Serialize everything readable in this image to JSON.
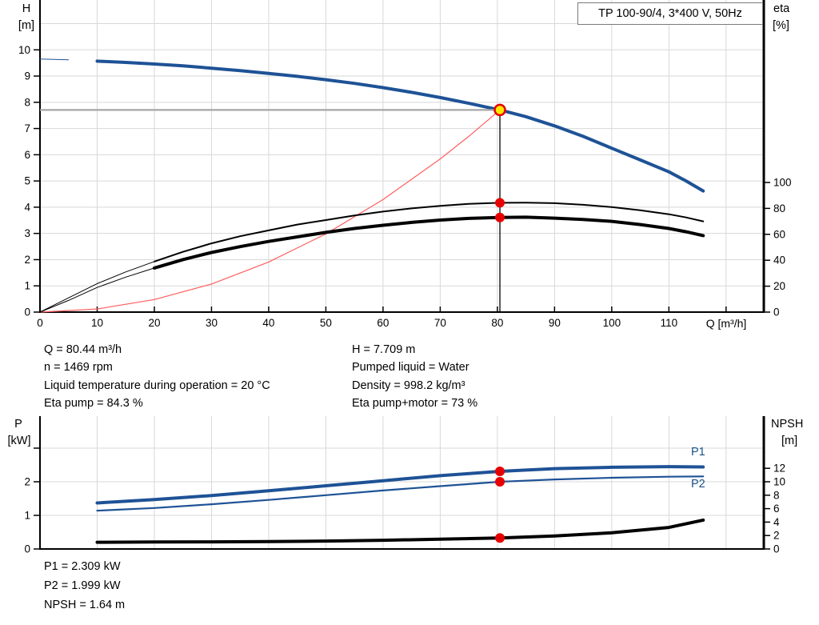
{
  "colors": {
    "curve_blue": "#1E5296",
    "label_blue": "#1D5289",
    "red": "#E60000",
    "op_yellow": "#FFE800",
    "system_red": "#FF5F5F",
    "grid": "#D8D8D8",
    "crosshair_gray": "#A6A6A6",
    "axis_black": "#000000",
    "title_border_gray": "#7A7A7A"
  },
  "info": {
    "top_left": [
      "Q = 80.44 m³/h",
      "n = 1469 rpm",
      "Liquid temperature during operation = 20 °C",
      "Eta pump = 84.3 %"
    ],
    "top_right": [
      "H = 7.709 m",
      "Pumped liquid = Water",
      "Density = 998.2 kg/m³",
      "Eta pump+motor = 73 %"
    ],
    "bottom": [
      "P1 = 2.309 kW",
      "P2 = 1.999 kW",
      "NPSH = 1.64 m"
    ]
  },
  "chart_data": [
    {
      "id": "head",
      "type": "line",
      "title": "TP 100-90/4, 3*400 V, 50Hz",
      "x": {
        "label": "Q [m³/h]",
        "min": 0,
        "max": 126.6,
        "tick_labels": [
          0,
          10,
          20,
          30,
          40,
          50,
          60,
          70,
          80,
          90,
          100,
          110
        ],
        "tick_marks": [
          0,
          10,
          20,
          30,
          40,
          50,
          60,
          70,
          80,
          90,
          100,
          110,
          120
        ],
        "grid": [
          10,
          20,
          30,
          40,
          50,
          60,
          70,
          80,
          90,
          100,
          110,
          120
        ]
      },
      "y_left": {
        "label": "H [m]",
        "label_lines": [
          "H",
          "[m]"
        ],
        "min": 0,
        "max": 11.9,
        "tick_labels": [
          0,
          1,
          2,
          3,
          4,
          5,
          6,
          7,
          8,
          9,
          10
        ],
        "grid": [
          1,
          2,
          3,
          4,
          5,
          6,
          7,
          8,
          9,
          10,
          11
        ]
      },
      "y_right": {
        "label": "eta [%]",
        "label_lines": [
          "eta",
          "[%]"
        ],
        "min": 0,
        "max": 100,
        "tick_labels": [
          0,
          20,
          40,
          60,
          80,
          100
        ]
      },
      "series": [
        {
          "name": "System curve",
          "axis": "left",
          "style": "thin-red",
          "points": [
            [
              0,
              0
            ],
            [
              10,
              0.12
            ],
            [
              20,
              0.48
            ],
            [
              30,
              1.07
            ],
            [
              40,
              1.91
            ],
            [
              50,
              2.98
            ],
            [
              60,
              4.29
            ],
            [
              70,
              5.84
            ],
            [
              75,
              6.7
            ],
            [
              80.44,
              7.709
            ]
          ]
        },
        {
          "name": "H",
          "axis": "left",
          "style": "thick-blue",
          "thin_below_q": 7,
          "points": [
            [
              0,
              9.65
            ],
            [
              5,
              9.62
            ],
            [
              10,
              9.57
            ],
            [
              15,
              9.52
            ],
            [
              20,
              9.46
            ],
            [
              25,
              9.39
            ],
            [
              30,
              9.3
            ],
            [
              35,
              9.21
            ],
            [
              40,
              9.1
            ],
            [
              45,
              8.99
            ],
            [
              50,
              8.86
            ],
            [
              55,
              8.72
            ],
            [
              60,
              8.56
            ],
            [
              65,
              8.38
            ],
            [
              70,
              8.18
            ],
            [
              75,
              7.96
            ],
            [
              80.44,
              7.709
            ],
            [
              85,
              7.45
            ],
            [
              90,
              7.1
            ],
            [
              95,
              6.7
            ],
            [
              100,
              6.25
            ],
            [
              105,
              5.8
            ],
            [
              110,
              5.35
            ],
            [
              113,
              5.0
            ],
            [
              116,
              4.62
            ]
          ]
        },
        {
          "name": "Eta pump",
          "axis": "right",
          "style": "thin-black",
          "thin_below_q": 20,
          "points": [
            [
              0,
              0
            ],
            [
              5,
              11
            ],
            [
              10,
              22
            ],
            [
              15,
              31
            ],
            [
              20,
              39
            ],
            [
              25,
              46.5
            ],
            [
              30,
              53
            ],
            [
              35,
              58.5
            ],
            [
              40,
              63
            ],
            [
              45,
              67.5
            ],
            [
              50,
              71
            ],
            [
              55,
              74.5
            ],
            [
              60,
              77.5
            ],
            [
              65,
              80
            ],
            [
              70,
              82
            ],
            [
              75,
              83.5
            ],
            [
              80.44,
              84.3
            ],
            [
              85,
              84.4
            ],
            [
              90,
              84
            ],
            [
              95,
              82.8
            ],
            [
              100,
              81
            ],
            [
              105,
              78.5
            ],
            [
              110,
              75.5
            ],
            [
              113,
              73
            ],
            [
              116,
              70
            ]
          ]
        },
        {
          "name": "Eta pump+motor",
          "axis": "right",
          "style": "thick-black",
          "thin_below_q": 20,
          "points": [
            [
              0,
              0
            ],
            [
              5,
              9
            ],
            [
              10,
              19
            ],
            [
              15,
              27
            ],
            [
              20,
              34
            ],
            [
              25,
              40.5
            ],
            [
              30,
              46
            ],
            [
              35,
              50.5
            ],
            [
              40,
              54.5
            ],
            [
              45,
              58
            ],
            [
              50,
              61.5
            ],
            [
              55,
              64.5
            ],
            [
              60,
              67
            ],
            [
              65,
              69.2
            ],
            [
              70,
              71
            ],
            [
              75,
              72.3
            ],
            [
              80.44,
              73
            ],
            [
              85,
              73.2
            ],
            [
              90,
              72.5
            ],
            [
              95,
              71.4
            ],
            [
              100,
              70
            ],
            [
              105,
              67.5
            ],
            [
              110,
              64.5
            ],
            [
              113,
              62
            ],
            [
              116,
              59
            ]
          ]
        }
      ],
      "operating_point": {
        "q": 80.44,
        "h": 7.709,
        "eta_pump": 84.3,
        "eta_pump_motor": 73
      }
    },
    {
      "id": "power",
      "type": "line",
      "x": {
        "min": 0,
        "max": 126.6,
        "tick_labels": [],
        "tick_marks": [],
        "grid": [
          10,
          20,
          30,
          40,
          50,
          60,
          70,
          80,
          90,
          100,
          110,
          120
        ]
      },
      "y_left": {
        "label": "P [kW]",
        "label_lines": [
          "P",
          "[kW]"
        ],
        "min": 0,
        "max": 3.95,
        "tick_labels": [
          0,
          1,
          2
        ],
        "tick_marks": [
          0,
          1,
          2,
          3
        ],
        "grid": [
          1,
          2,
          3
        ]
      },
      "y_right": {
        "label": "NPSH [m]",
        "label_lines": [
          "NPSH",
          "[m]"
        ],
        "min": 0,
        "max": 12,
        "tick_labels": [
          0,
          2,
          4,
          6,
          8,
          10,
          12
        ]
      },
      "series": [
        {
          "name": "P1",
          "axis": "left",
          "style": "thick-blue",
          "thin_below_q": 7,
          "points": [
            [
              0,
              1.28
            ],
            [
              10,
              1.37
            ],
            [
              20,
              1.47
            ],
            [
              30,
              1.59
            ],
            [
              40,
              1.73
            ],
            [
              50,
              1.88
            ],
            [
              60,
              2.03
            ],
            [
              70,
              2.18
            ],
            [
              80.44,
              2.309
            ],
            [
              90,
              2.39
            ],
            [
              100,
              2.43
            ],
            [
              110,
              2.45
            ],
            [
              116,
              2.44
            ]
          ]
        },
        {
          "name": "P2",
          "axis": "left",
          "style": "med-blue",
          "thin_below_q": 7,
          "points": [
            [
              0,
              1.08
            ],
            [
              10,
              1.14
            ],
            [
              20,
              1.22
            ],
            [
              30,
              1.33
            ],
            [
              40,
              1.46
            ],
            [
              50,
              1.6
            ],
            [
              60,
              1.74
            ],
            [
              70,
              1.87
            ],
            [
              80.44,
              1.999
            ],
            [
              90,
              2.07
            ],
            [
              100,
              2.12
            ],
            [
              110,
              2.15
            ],
            [
              116,
              2.16
            ]
          ]
        },
        {
          "name": "NPSH",
          "axis": "right",
          "style": "thick-black",
          "thin_below_q": 7,
          "points": [
            [
              0,
              0.98
            ],
            [
              10,
              1.0
            ],
            [
              20,
              1.03
            ],
            [
              30,
              1.06
            ],
            [
              40,
              1.1
            ],
            [
              50,
              1.18
            ],
            [
              60,
              1.3
            ],
            [
              70,
              1.45
            ],
            [
              80.44,
              1.64
            ],
            [
              90,
              1.93
            ],
            [
              100,
              2.4
            ],
            [
              110,
              3.2
            ],
            [
              116,
              4.3
            ]
          ]
        }
      ],
      "duty_points": {
        "q": 80.44,
        "p1": 2.309,
        "p2": 1.999,
        "npsh": 1.64
      }
    }
  ]
}
